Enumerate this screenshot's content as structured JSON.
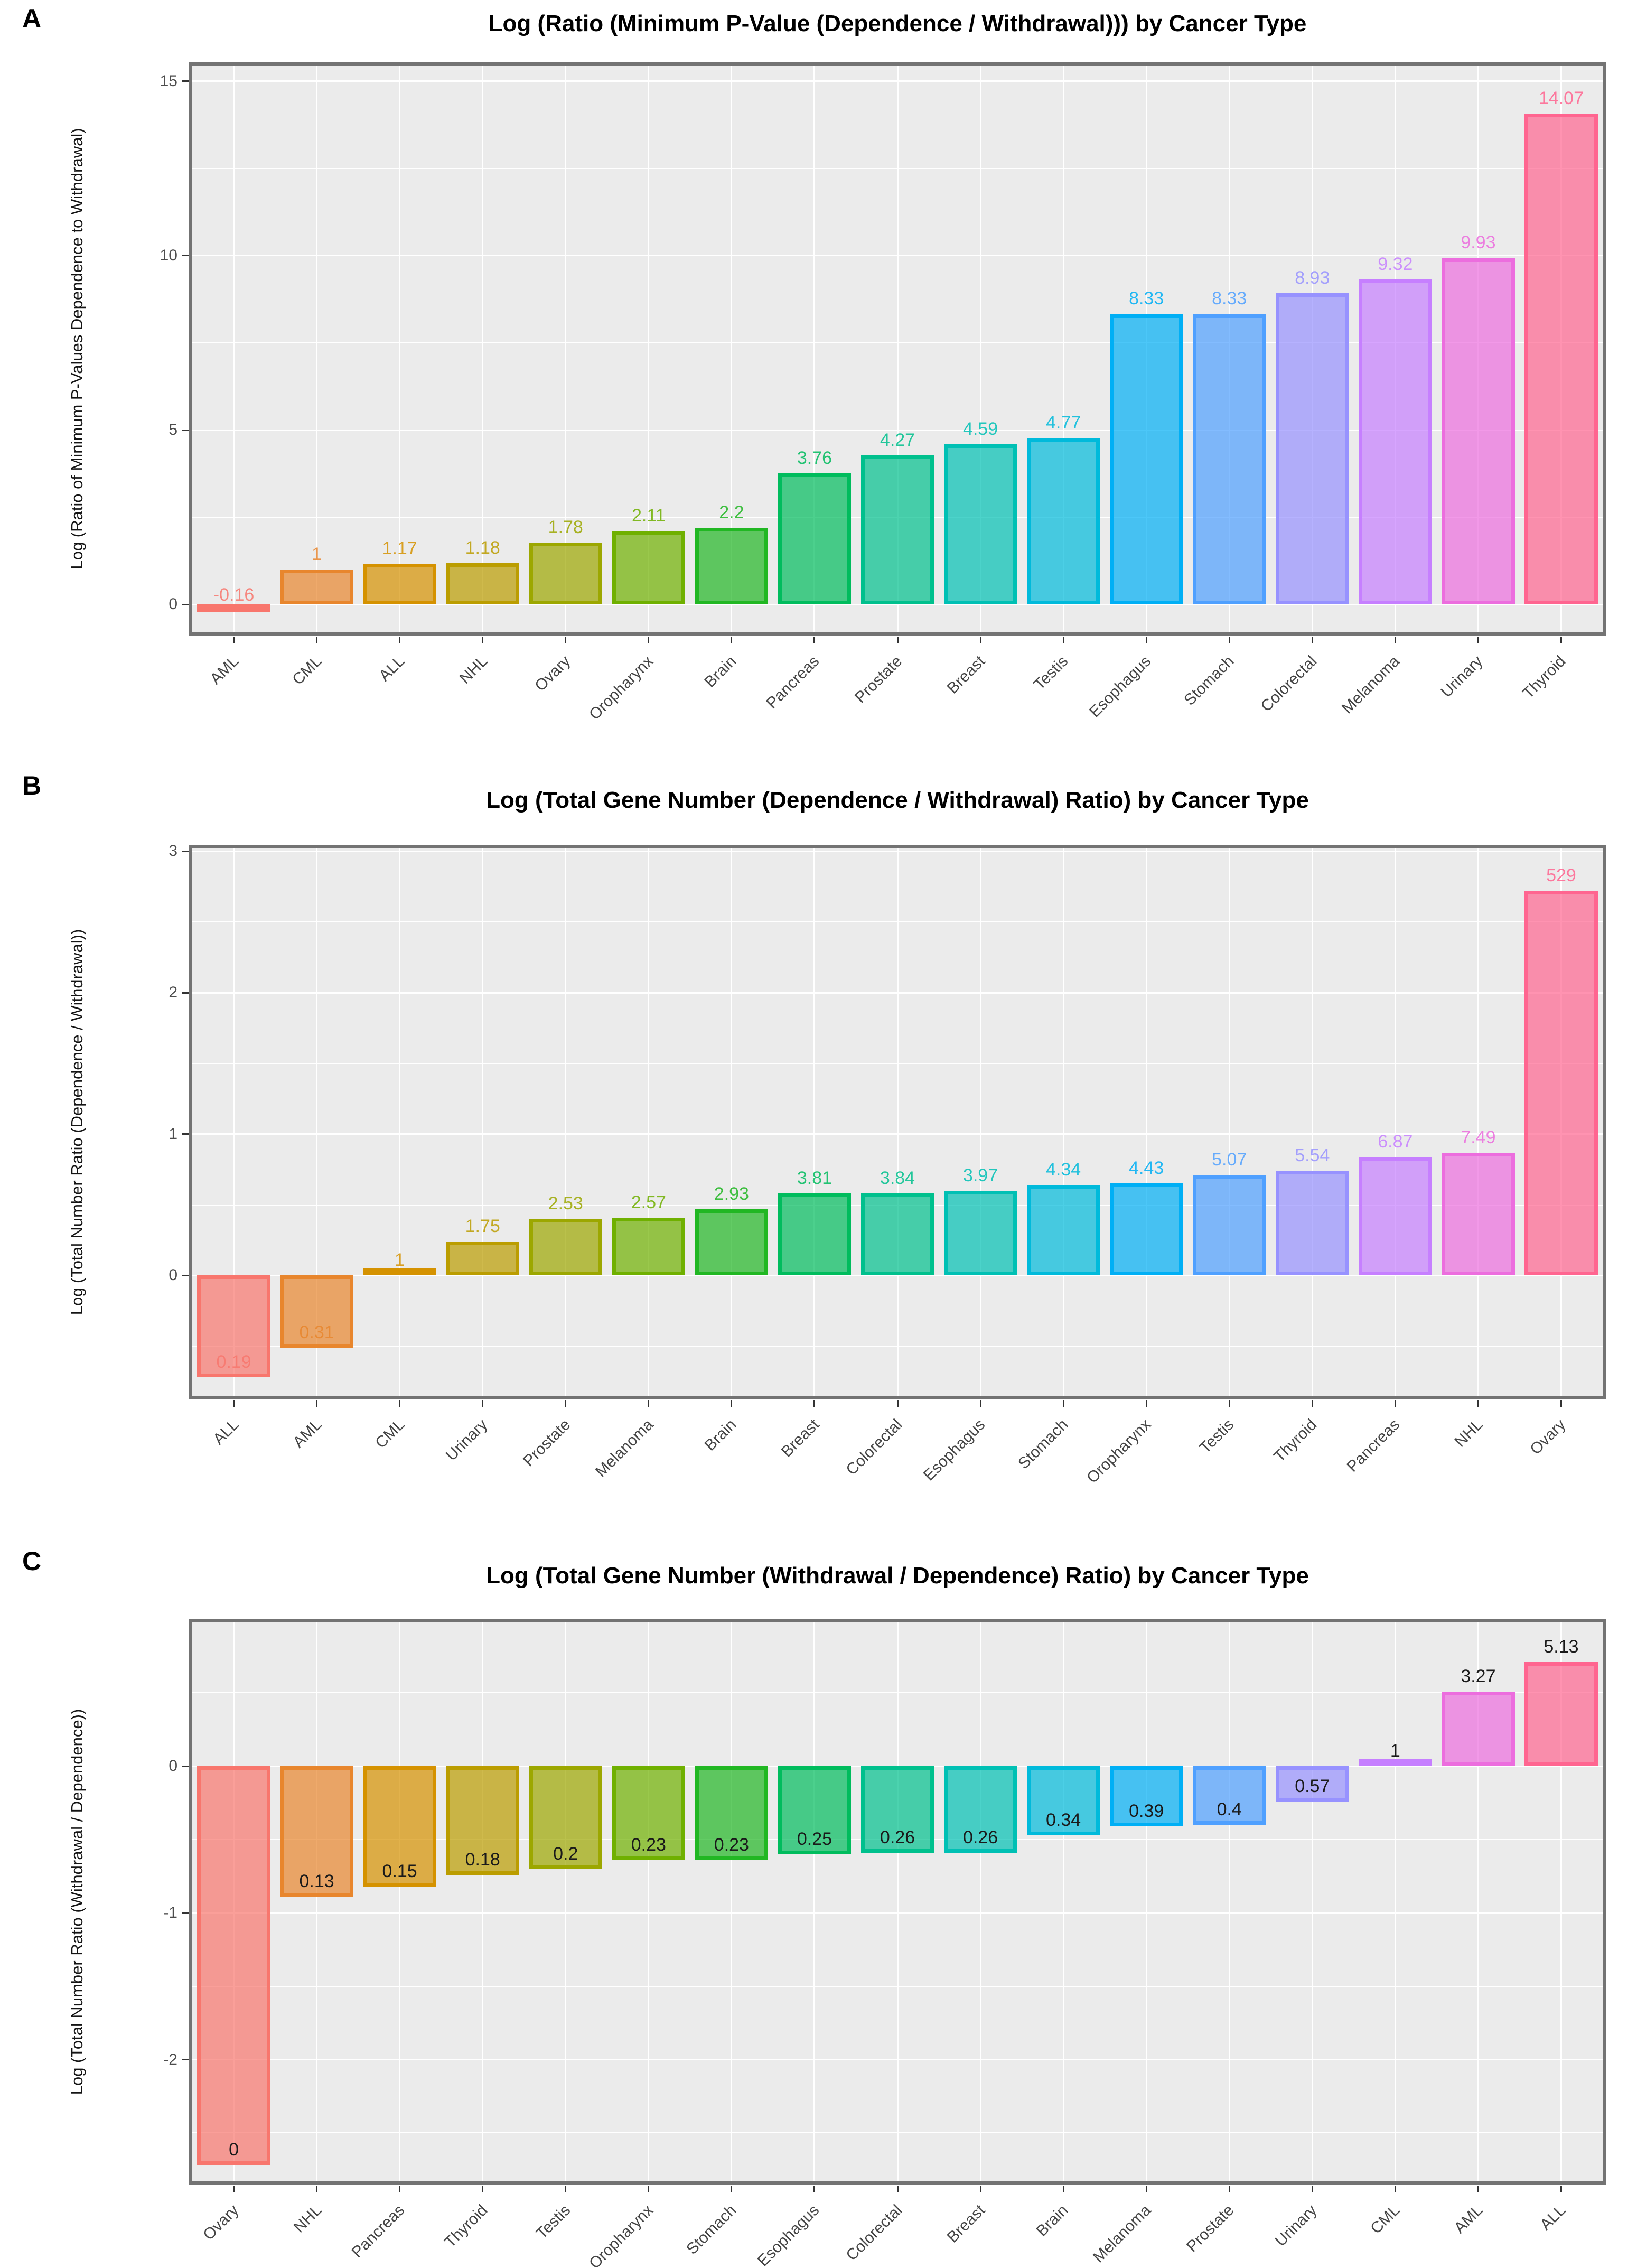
{
  "palette": {
    "panel_background": "#EBEBEB",
    "grid_color": "#FFFFFF",
    "panel_border": "#737373",
    "tick_text": "#4D4D4D",
    "title_text": "#000000",
    "dark_label_text": "#1A1A1A",
    "bar_colors": [
      "#F8766D",
      "#E8862D",
      "#D59200",
      "#BB9D00",
      "#9CA700",
      "#6FB000",
      "#21B723",
      "#00BC5D",
      "#00C08D",
      "#00C0B4",
      "#00BADB",
      "#00AFF5",
      "#4FA0FF",
      "#9792FF",
      "#C67FFF",
      "#EC6DDE",
      "#FF6590"
    ]
  },
  "chart_data": [
    {
      "panel_letter": "A",
      "type": "bar",
      "title": "Log (Ratio (Minimum P-Value (Dependence / Withdrawal))) by Cancer Type",
      "ylabel": "Log (Ratio of Minimum P-Values Dependence to Withdrawal)",
      "categories": [
        "AML",
        "CML",
        "ALL",
        "NHL",
        "Ovary",
        "Oropharynx",
        "Brain",
        "Pancreas",
        "Prostate",
        "Breast",
        "Testis",
        "Esophagus",
        "Stomach",
        "Colorectal",
        "Melanoma",
        "Urinary",
        "Thyroid"
      ],
      "values": [
        -0.16,
        1,
        1.17,
        1.18,
        1.78,
        2.11,
        2.2,
        3.76,
        4.27,
        4.59,
        4.77,
        8.33,
        8.33,
        8.93,
        9.32,
        9.93,
        14.07
      ],
      "labels": [
        "-0.16",
        "1",
        "1.17",
        "1.18",
        "1.78",
        "2.11",
        "2.2",
        "3.76",
        "4.27",
        "4.59",
        "4.77",
        "8.33",
        "8.33",
        "8.93",
        "9.32",
        "9.93",
        "14.07"
      ],
      "bar_heights": [
        -0.16,
        1,
        1.17,
        1.18,
        1.78,
        2.11,
        2.2,
        3.76,
        4.27,
        4.59,
        4.77,
        8.33,
        8.33,
        8.93,
        9.32,
        9.93,
        14.07
      ],
      "yticks": [
        0,
        5,
        10,
        15
      ],
      "ylim": [
        -0.8,
        15.45
      ],
      "x_tick_angle": -45,
      "grid": true,
      "legend": "none",
      "label_style": "bar-color"
    },
    {
      "panel_letter": "B",
      "type": "bar",
      "title": "Log (Total Gene Number (Dependence / Withdrawal) Ratio) by Cancer Type",
      "ylabel": "Log (Total Number Ratio (Dependence / Withdrawal))",
      "categories": [
        "ALL",
        "AML",
        "CML",
        "Urinary",
        "Prostate",
        "Melanoma",
        "Brain",
        "Breast",
        "Colorectal",
        "Esophagus",
        "Stomach",
        "Oropharynx",
        "Testis",
        "Thyroid",
        "Pancreas",
        "NHL",
        "Ovary"
      ],
      "values": [
        0.19,
        0.31,
        1,
        1.75,
        2.53,
        2.57,
        2.93,
        3.81,
        3.84,
        3.97,
        4.34,
        4.43,
        5.07,
        5.54,
        6.87,
        7.49,
        529
      ],
      "labels": [
        "0.19",
        "0.31",
        "1",
        "1.75",
        "2.53",
        "2.57",
        "2.93",
        "3.81",
        "3.84",
        "3.97",
        "4.34",
        "4.43",
        "5.07",
        "5.54",
        "6.87",
        "7.49",
        "529"
      ],
      "bar_heights": [
        -0.72,
        -0.51,
        0,
        0.24,
        0.4,
        0.41,
        0.47,
        0.58,
        0.58,
        0.6,
        0.64,
        0.65,
        0.71,
        0.74,
        0.84,
        0.87,
        2.72
      ],
      "yticks": [
        0,
        1,
        2,
        3
      ],
      "ylim": [
        -0.85,
        3.02
      ],
      "x_tick_angle": -45,
      "grid": true,
      "legend": "none",
      "label_style": "bar-color"
    },
    {
      "panel_letter": "C",
      "type": "bar",
      "title": "Log (Total Gene Number (Withdrawal / Dependence) Ratio) by Cancer Type",
      "ylabel": "Log (Total Number Ratio (Withdrawal / Dependence))",
      "categories": [
        "Ovary",
        "NHL",
        "Pancreas",
        "Thyroid",
        "Testis",
        "Oropharynx",
        "Stomach",
        "Esophagus",
        "Colorectal",
        "Breast",
        "Brain",
        "Melanoma",
        "Prostate",
        "Urinary",
        "CML",
        "AML",
        "ALL"
      ],
      "values": [
        0,
        0.13,
        0.15,
        0.18,
        0.2,
        0.23,
        0.23,
        0.25,
        0.26,
        0.26,
        0.34,
        0.39,
        0.4,
        0.57,
        1,
        3.27,
        5.13
      ],
      "labels": [
        "0",
        "0.13",
        "0.15",
        "0.18",
        "0.2",
        "0.23",
        "0.23",
        "0.25",
        "0.26",
        "0.26",
        "0.34",
        "0.39",
        "0.4",
        "0.57",
        "1",
        "3.27",
        "5.13"
      ],
      "bar_heights": [
        -2.72,
        -0.89,
        -0.82,
        -0.74,
        -0.7,
        -0.64,
        -0.64,
        -0.6,
        -0.59,
        -0.59,
        -0.47,
        -0.41,
        -0.4,
        -0.24,
        0,
        0.51,
        0.71
      ],
      "yticks": [
        -2,
        -1,
        0,
        1
      ],
      "ylim": [
        -2.83,
        0.98
      ],
      "x_tick_angle": -45,
      "grid": true,
      "legend": "none",
      "label_style": "dark"
    }
  ]
}
